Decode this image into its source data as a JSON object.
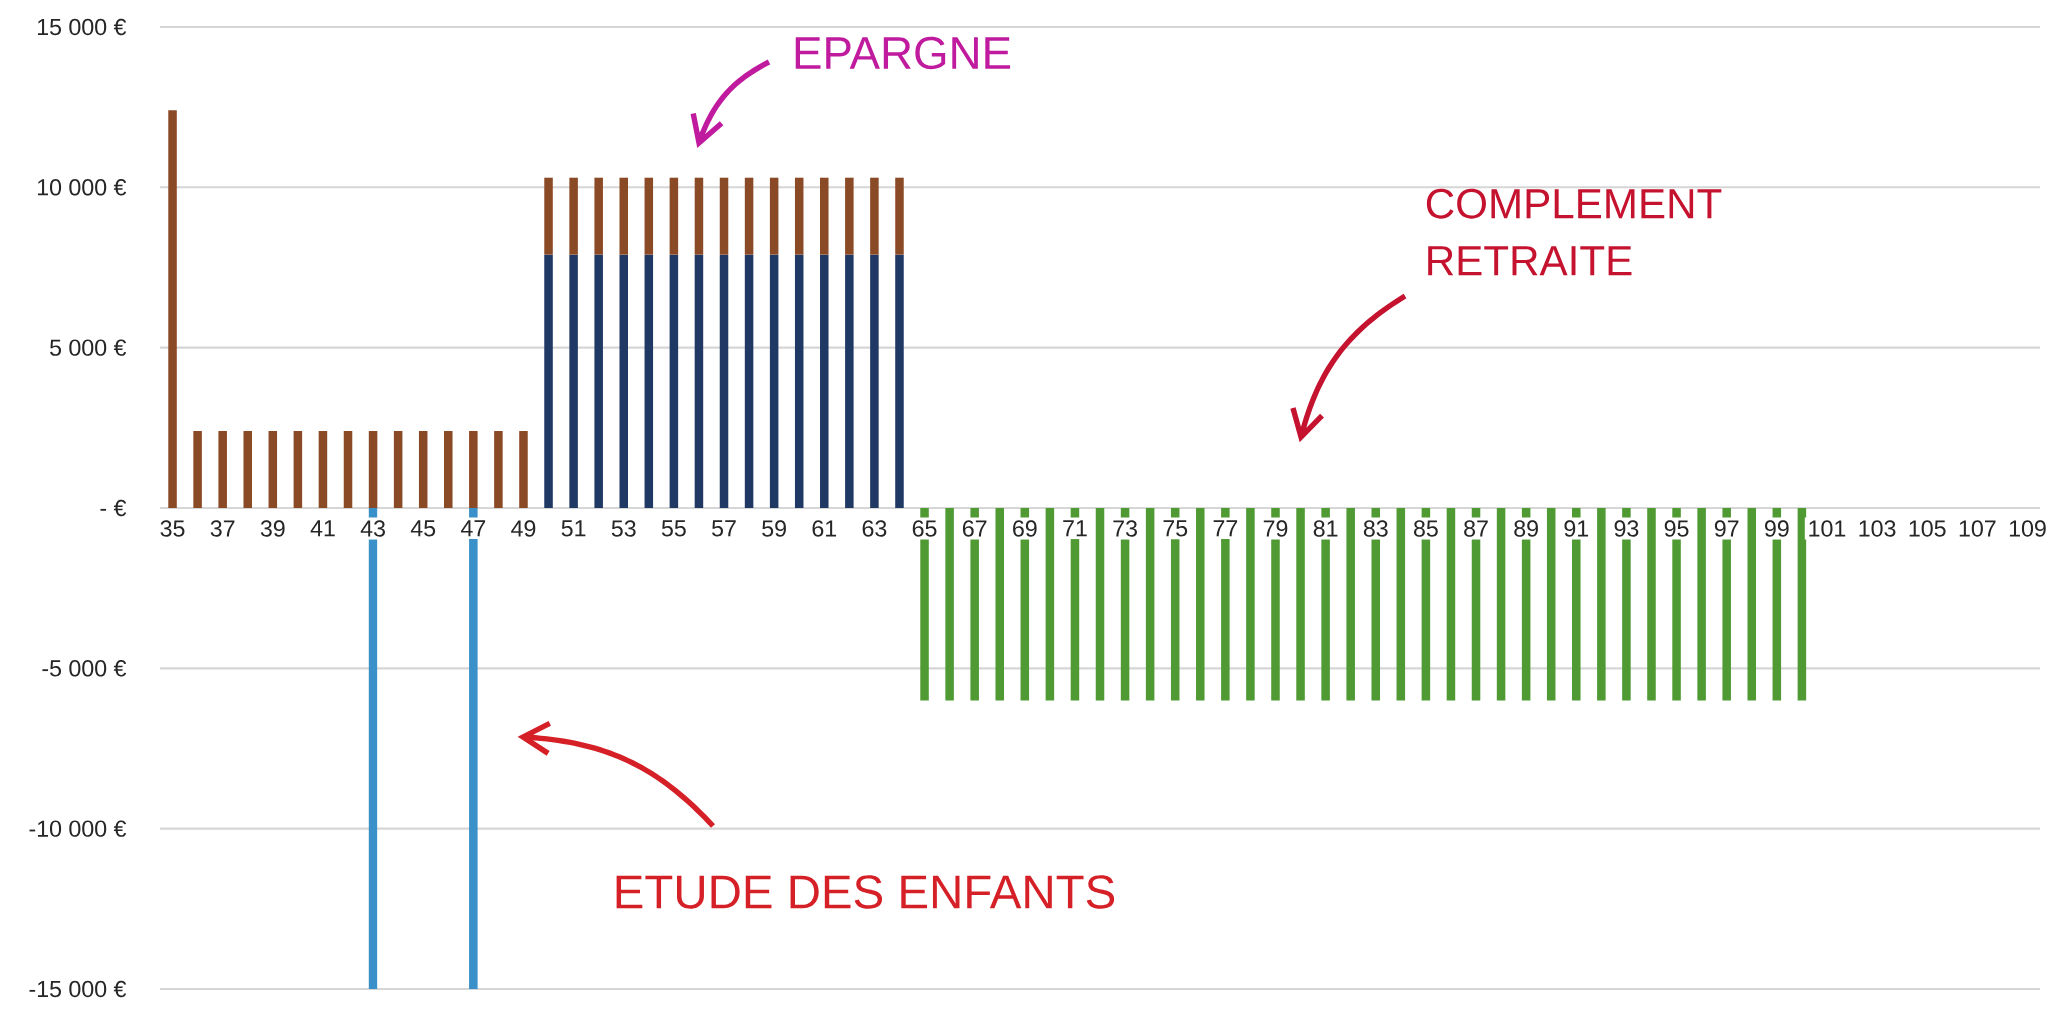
{
  "chart_data": {
    "type": "bar",
    "stacked": true,
    "categories": [
      "35",
      null,
      "37",
      null,
      "39",
      null,
      "41",
      null,
      "43",
      null,
      "45",
      null,
      "47",
      null,
      "49",
      null,
      "51",
      null,
      "53",
      null,
      "55",
      null,
      "57",
      null,
      "59",
      null,
      "61",
      null,
      "63",
      null,
      "65",
      null,
      "67",
      null,
      "69",
      null,
      "71",
      null,
      "73",
      null,
      "75",
      null,
      "77",
      null,
      "79",
      null,
      "81",
      null,
      "83",
      null,
      "85",
      null,
      "87",
      null,
      "89",
      null,
      "91",
      null,
      "93",
      null,
      "95",
      null,
      "97",
      null,
      "99",
      null,
      "101",
      null,
      "103",
      null,
      "105",
      null,
      "107",
      null,
      "109"
    ],
    "series": [
      {
        "color": "#1f3864",
        "values": [
          null,
          null,
          null,
          null,
          null,
          null,
          null,
          null,
          null,
          null,
          null,
          null,
          null,
          null,
          null,
          7900,
          7900,
          7900,
          7900,
          7900,
          7900,
          7900,
          7900,
          7900,
          7900,
          7900,
          7900,
          7900,
          7900,
          7900,
          null,
          null,
          null,
          null,
          null,
          null,
          null,
          null,
          null,
          null,
          null,
          null,
          null,
          null,
          null,
          null,
          null,
          null,
          null,
          null,
          null,
          null,
          null,
          null,
          null,
          null,
          null,
          null,
          null,
          null,
          null,
          null,
          null,
          null,
          null,
          null,
          null,
          null,
          null,
          null,
          null,
          null,
          null,
          null,
          null
        ]
      },
      {
        "color": "#8b4a26",
        "values": [
          12400,
          2400,
          2400,
          2400,
          2400,
          2400,
          2400,
          2400,
          2400,
          2400,
          2400,
          2400,
          2400,
          2400,
          2400,
          2400,
          2400,
          2400,
          2400,
          2400,
          2400,
          2400,
          2400,
          2400,
          2400,
          2400,
          2400,
          2400,
          2400,
          2400,
          null,
          null,
          null,
          null,
          null,
          null,
          null,
          null,
          null,
          null,
          null,
          null,
          null,
          null,
          null,
          null,
          null,
          null,
          null,
          null,
          null,
          null,
          null,
          null,
          null,
          null,
          null,
          null,
          null,
          null,
          null,
          null,
          null,
          null,
          null,
          null,
          null,
          null,
          null,
          null,
          null,
          null,
          null,
          null,
          null
        ]
      },
      {
        "color": "#3a90c8",
        "values": [
          null,
          null,
          null,
          null,
          null,
          null,
          null,
          null,
          -15000,
          null,
          null,
          null,
          -15000,
          null,
          null,
          null,
          null,
          null,
          null,
          null,
          null,
          null,
          null,
          null,
          null,
          null,
          null,
          null,
          null,
          null,
          null,
          null,
          null,
          null,
          null,
          null,
          null,
          null,
          null,
          null,
          null,
          null,
          null,
          null,
          null,
          null,
          null,
          null,
          null,
          null,
          null,
          null,
          null,
          null,
          null,
          null,
          null,
          null,
          null,
          null,
          null,
          null,
          null,
          null,
          null,
          null,
          null,
          null,
          null,
          null,
          null,
          null,
          null,
          null,
          null
        ]
      },
      {
        "color": "#4f9a32",
        "values": [
          null,
          null,
          null,
          null,
          null,
          null,
          null,
          null,
          null,
          null,
          null,
          null,
          null,
          null,
          null,
          null,
          null,
          null,
          null,
          null,
          null,
          null,
          null,
          null,
          null,
          null,
          null,
          null,
          null,
          null,
          -6000,
          -6000,
          -6000,
          -6000,
          -6000,
          -6000,
          -6000,
          -6000,
          -6000,
          -6000,
          -6000,
          -6000,
          -6000,
          -6000,
          -6000,
          -6000,
          -6000,
          -6000,
          -6000,
          -6000,
          -6000,
          -6000,
          -6000,
          -6000,
          -6000,
          -6000,
          -6000,
          -6000,
          -6000,
          -6000,
          -6000,
          -6000,
          -6000,
          -6000,
          -6000,
          -6000,
          null,
          null,
          null,
          null,
          null,
          null,
          null,
          null,
          null
        ]
      }
    ],
    "ylim": [
      -15000,
      15000
    ],
    "yticks": [
      {
        "value": -15000,
        "label": "-15 000 €"
      },
      {
        "value": -10000,
        "label": "-10 000 €"
      },
      {
        "value": -5000,
        "label": "-5 000 €"
      },
      {
        "value": 0,
        "label": "- €"
      },
      {
        "value": 5000,
        "label": "5 000 €"
      },
      {
        "value": 10000,
        "label": "10 000 €"
      },
      {
        "value": 15000,
        "label": "15 000 €"
      }
    ],
    "grid": "y",
    "annotations": [
      "EPARGNE",
      "COMPLEMENT RETRAITE",
      "ETUDE DES ENFANTS"
    ]
  }
}
